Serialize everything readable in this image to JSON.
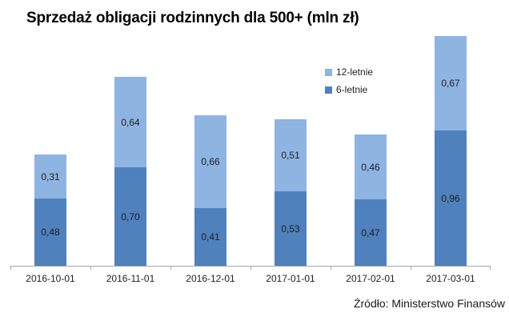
{
  "title": "Sprzedaż obligacji rodzinnych dla 500+ (mln zł)",
  "source_note": "Źródło: Ministerstwo Finansów",
  "legend": {
    "items": [
      {
        "label": "12-letnie",
        "color": "#8EB4E2"
      },
      {
        "label": "6-letnie",
        "color": "#4F81BD"
      }
    ]
  },
  "colors": {
    "series_12_letnie": "#8EB4E2",
    "series_6_letnie": "#4F81BD",
    "axis_line": "#A6A6A6",
    "label_text": "#1f1f1f"
  },
  "chart_data": {
    "type": "bar",
    "stacked": true,
    "title": "Sprzedaż obligacji rodzinnych dla 500+ (mln zł)",
    "categories": [
      "2016-10-01",
      "2016-11-01",
      "2016-12-01",
      "2017-01-01",
      "2017-02-01",
      "2017-03-01"
    ],
    "series": [
      {
        "name": "6-letnie",
        "color": "#4F81BD",
        "values": [
          0.48,
          0.7,
          0.41,
          0.53,
          0.47,
          0.96
        ]
      },
      {
        "name": "12-letnie",
        "color": "#8EB4E2",
        "values": [
          0.31,
          0.64,
          0.66,
          0.51,
          0.46,
          0.67
        ]
      }
    ],
    "totals": [
      0.79,
      1.34,
      1.07,
      1.04,
      0.93,
      1.63
    ],
    "data_labels": {
      "6-letnie": [
        "0,48",
        "0,70",
        "0,41",
        "0,53",
        "0,47",
        "0,96"
      ],
      "12-letnie": [
        "0,31",
        "0,64",
        "0,66",
        "0,51",
        "0,46",
        "0,67"
      ]
    },
    "decimal_separator": ",",
    "xlabel": "",
    "ylabel": "",
    "ylim": [
      0,
      1.8
    ],
    "grid": false,
    "y_axis_visible": false,
    "legend_position": "top-right",
    "source": "Źródło: Ministerstwo Finansów"
  }
}
